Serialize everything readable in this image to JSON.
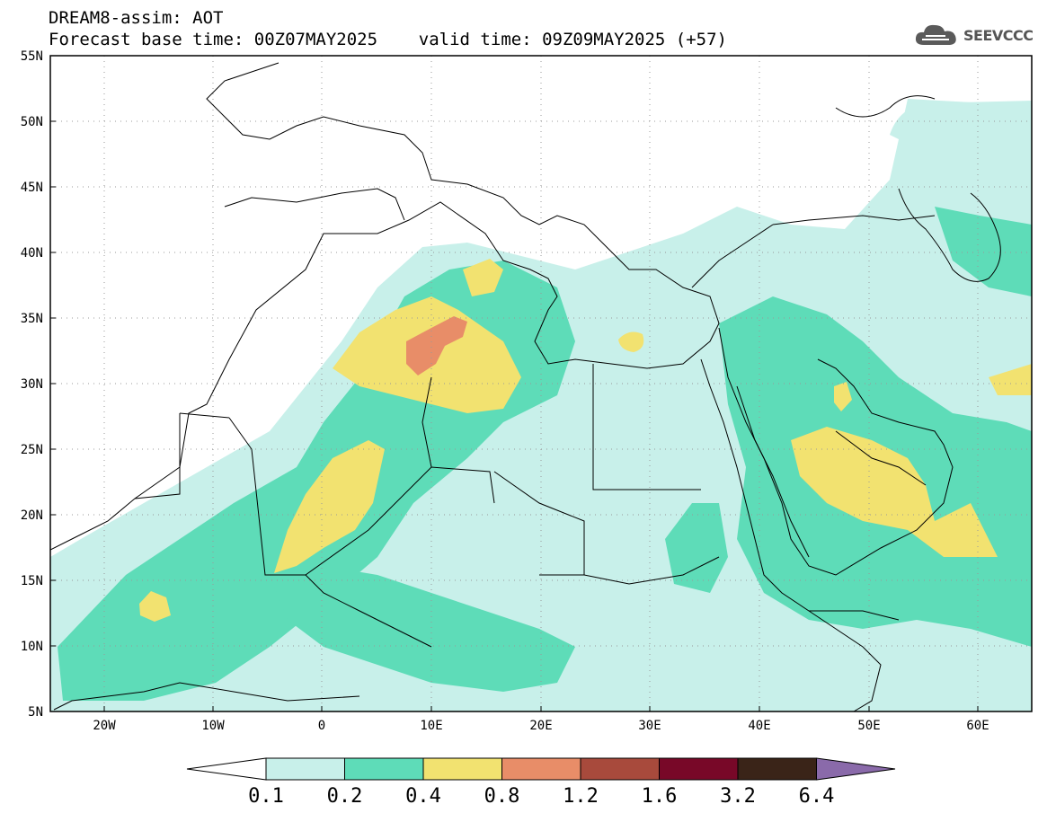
{
  "header": {
    "line1": "DREAM8-assim: AOT",
    "line2": "Forecast base time: 00Z07MAY2025    valid time: 09Z09MAY2025 (+57)"
  },
  "logo": {
    "text": "SEEVCCC",
    "icon": "cloud-icon"
  },
  "map": {
    "lon_range": [
      -25,
      65
    ],
    "lat_range": [
      5,
      55
    ],
    "lat_labels": [
      "55N",
      "50N",
      "45N",
      "40N",
      "35N",
      "30N",
      "25N",
      "20N",
      "15N",
      "10N",
      "5N"
    ],
    "lon_labels": [
      "20W",
      "10W",
      "0",
      "10E",
      "20E",
      "30E",
      "40E",
      "50E",
      "60E"
    ],
    "grid": "dotted"
  },
  "colorbar": {
    "labels": [
      "0.1",
      "0.2",
      "0.4",
      "0.8",
      "1.2",
      "1.6",
      "3.2",
      "6.4"
    ],
    "colors": [
      "#c8f0ea",
      "#5edcb8",
      "#f2e270",
      "#e88d68",
      "#a84a3c",
      "#780828",
      "#3a2418",
      "#8a6aaa"
    ],
    "under_color": "#ffffff"
  }
}
